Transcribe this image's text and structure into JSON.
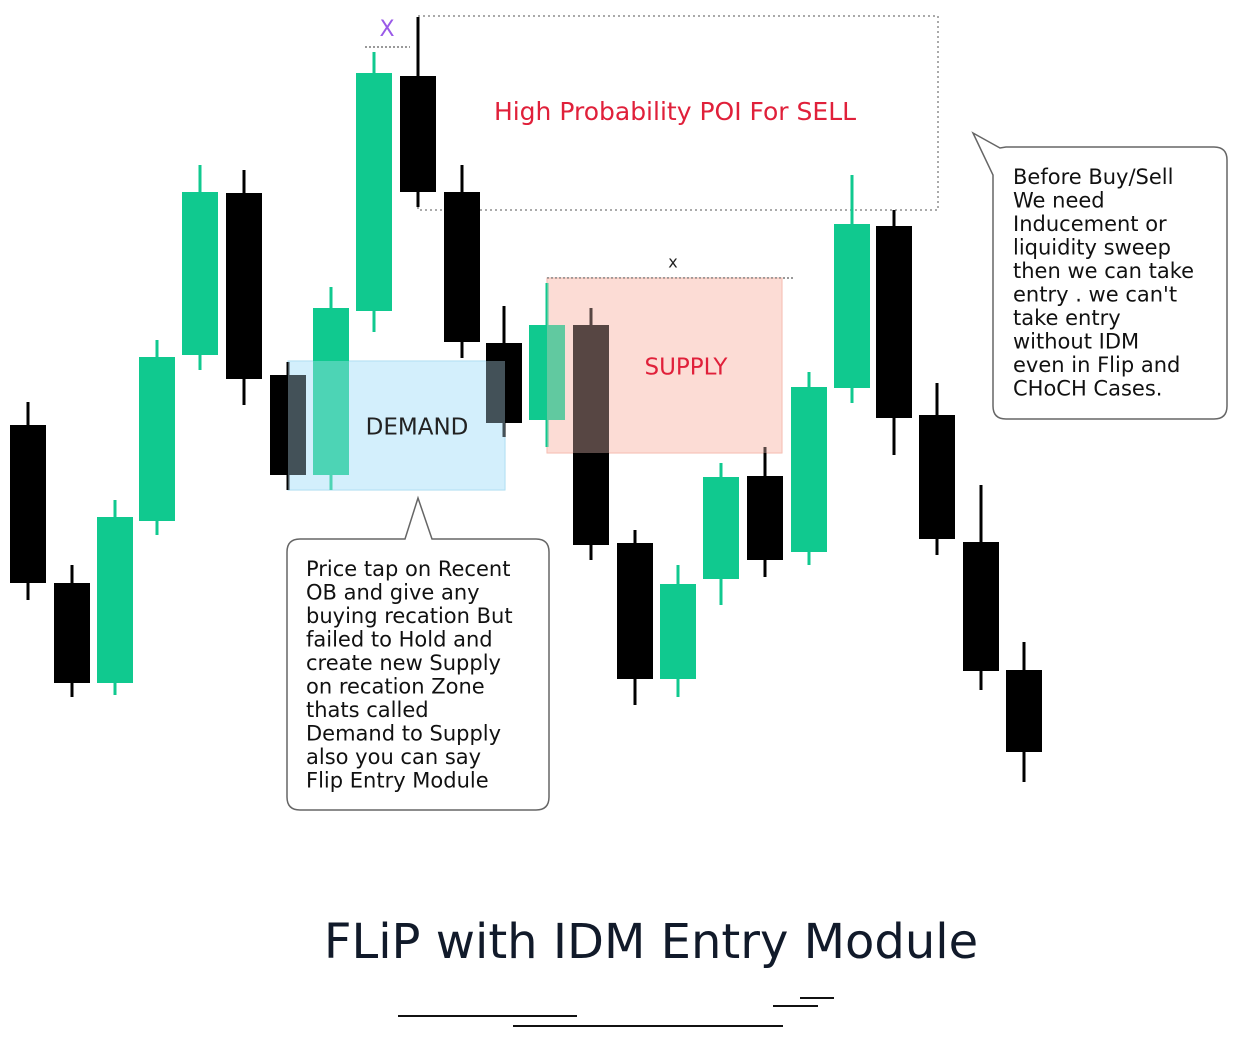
{
  "markers": {
    "high_mark": "X",
    "supply_mark": "x"
  },
  "zones": {
    "poi": "High Probability POI For SELL",
    "supply": "SUPPLY",
    "demand": "DEMAND"
  },
  "callouts": {
    "right": [
      "Before Buy/Sell",
      "We need",
      "Inducement or",
      "liquidity sweep",
      "then we can take",
      "entry . we can't",
      "take entry",
      "without IDM",
      "even in Flip and",
      "CHoCH Cases."
    ],
    "bottom": [
      "Price tap on Recent",
      "OB and give any",
      "buying recation But",
      "failed to Hold  and",
      "create new Supply",
      "on recation Zone",
      "thats called",
      "Demand to Supply",
      "also you can say",
      "Flip Entry Module"
    ]
  },
  "footer": {
    "title": "FLiP with IDM  Entry Module"
  }
}
